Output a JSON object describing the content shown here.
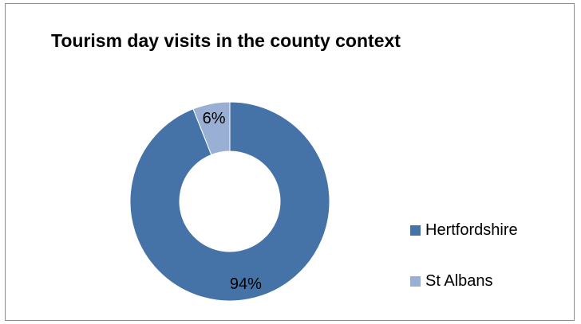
{
  "chart_data": {
    "type": "pie",
    "variant": "donut",
    "title": "Tourism day visits in the county context",
    "categories": [
      "Hertfordshire",
      "St Albans"
    ],
    "values": [
      94,
      6
    ],
    "value_labels": [
      "94%",
      "6%"
    ],
    "colors": [
      "#4573a7",
      "#9aafd4"
    ],
    "legend_position": "right"
  }
}
